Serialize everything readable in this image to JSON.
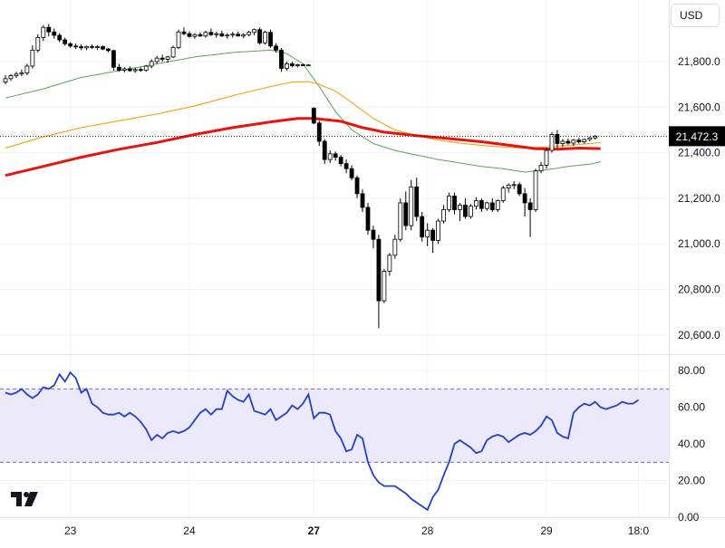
{
  "toolbar": {
    "currency_label": "USD"
  },
  "chart_data": [
    {
      "type": "candlestick",
      "yticks": [
        "21,800.0",
        "21,600.0",
        "21,400.0",
        "21,200.0",
        "21,000.0",
        "20,800.0",
        "20,600.0"
      ],
      "ytick_values": [
        21800,
        21600,
        21400,
        21200,
        21000,
        20800,
        20600
      ],
      "ylim": [
        20520,
        22070
      ],
      "xticks": [
        "23",
        "24",
        "27",
        "28",
        "29",
        "18:0"
      ],
      "xtick_bar_index": [
        12,
        34,
        57,
        78,
        100,
        117
      ],
      "bold_xticks": [
        "27"
      ],
      "last_price_label": "21,472.3",
      "last_price": 21472.3,
      "grid": true,
      "colors": {
        "up": "#ffffff",
        "down": "#000000",
        "outline": "#000000",
        "ma_short": "#5aa35a",
        "ma_mid": "#f5a623",
        "ma_long": "#e8130f",
        "last_price_bg": "#000000"
      },
      "candles": [
        {
          "o": 21710,
          "h": 21740,
          "l": 21700,
          "c": 21725
        },
        {
          "o": 21725,
          "h": 21745,
          "l": 21715,
          "c": 21738
        },
        {
          "o": 21738,
          "h": 21755,
          "l": 21728,
          "c": 21745
        },
        {
          "o": 21745,
          "h": 21765,
          "l": 21735,
          "c": 21750
        },
        {
          "o": 21750,
          "h": 21790,
          "l": 21740,
          "c": 21780
        },
        {
          "o": 21780,
          "h": 21870,
          "l": 21770,
          "c": 21850
        },
        {
          "o": 21850,
          "h": 21920,
          "l": 21840,
          "c": 21905
        },
        {
          "o": 21905,
          "h": 21960,
          "l": 21890,
          "c": 21950
        },
        {
          "o": 21950,
          "h": 21965,
          "l": 21910,
          "c": 21930
        },
        {
          "o": 21930,
          "h": 21945,
          "l": 21900,
          "c": 21915
        },
        {
          "o": 21915,
          "h": 21925,
          "l": 21885,
          "c": 21895
        },
        {
          "o": 21895,
          "h": 21905,
          "l": 21870,
          "c": 21878
        },
        {
          "o": 21878,
          "h": 21885,
          "l": 21860,
          "c": 21868
        },
        {
          "o": 21868,
          "h": 21880,
          "l": 21855,
          "c": 21865
        },
        {
          "o": 21865,
          "h": 21875,
          "l": 21850,
          "c": 21860
        },
        {
          "o": 21860,
          "h": 21870,
          "l": 21850,
          "c": 21866
        },
        {
          "o": 21866,
          "h": 21875,
          "l": 21855,
          "c": 21862
        },
        {
          "o": 21862,
          "h": 21872,
          "l": 21852,
          "c": 21865
        },
        {
          "o": 21865,
          "h": 21870,
          "l": 21850,
          "c": 21855
        },
        {
          "o": 21855,
          "h": 21860,
          "l": 21840,
          "c": 21848
        },
        {
          "o": 21848,
          "h": 21852,
          "l": 21760,
          "c": 21775
        },
        {
          "o": 21775,
          "h": 21790,
          "l": 21755,
          "c": 21762
        },
        {
          "o": 21762,
          "h": 21775,
          "l": 21752,
          "c": 21768
        },
        {
          "o": 21768,
          "h": 21778,
          "l": 21755,
          "c": 21760
        },
        {
          "o": 21760,
          "h": 21772,
          "l": 21750,
          "c": 21765
        },
        {
          "o": 21765,
          "h": 21775,
          "l": 21755,
          "c": 21762
        },
        {
          "o": 21762,
          "h": 21785,
          "l": 21755,
          "c": 21780
        },
        {
          "o": 21780,
          "h": 21810,
          "l": 21770,
          "c": 21800
        },
        {
          "o": 21800,
          "h": 21825,
          "l": 21790,
          "c": 21815
        },
        {
          "o": 21815,
          "h": 21830,
          "l": 21800,
          "c": 21810
        },
        {
          "o": 21810,
          "h": 21825,
          "l": 21795,
          "c": 21820
        },
        {
          "o": 21820,
          "h": 21870,
          "l": 21815,
          "c": 21862
        },
        {
          "o": 21862,
          "h": 21940,
          "l": 21855,
          "c": 21930
        },
        {
          "o": 21930,
          "h": 21950,
          "l": 21915,
          "c": 21922
        },
        {
          "o": 21922,
          "h": 21932,
          "l": 21905,
          "c": 21910
        },
        {
          "o": 21910,
          "h": 21925,
          "l": 21900,
          "c": 21918
        },
        {
          "o": 21918,
          "h": 21928,
          "l": 21908,
          "c": 21912
        },
        {
          "o": 21912,
          "h": 21935,
          "l": 21905,
          "c": 21928
        },
        {
          "o": 21928,
          "h": 21945,
          "l": 21912,
          "c": 21918
        },
        {
          "o": 21918,
          "h": 21930,
          "l": 21905,
          "c": 21922
        },
        {
          "o": 21922,
          "h": 21935,
          "l": 21908,
          "c": 21912
        },
        {
          "o": 21912,
          "h": 21924,
          "l": 21900,
          "c": 21916
        },
        {
          "o": 21916,
          "h": 21930,
          "l": 21905,
          "c": 21920
        },
        {
          "o": 21920,
          "h": 21932,
          "l": 21910,
          "c": 21912
        },
        {
          "o": 21912,
          "h": 21925,
          "l": 21902,
          "c": 21918
        },
        {
          "o": 21918,
          "h": 21935,
          "l": 21910,
          "c": 21928
        },
        {
          "o": 21928,
          "h": 21945,
          "l": 21915,
          "c": 21940
        },
        {
          "o": 21940,
          "h": 21950,
          "l": 21875,
          "c": 21882
        },
        {
          "o": 21882,
          "h": 21935,
          "l": 21875,
          "c": 21928
        },
        {
          "o": 21928,
          "h": 21940,
          "l": 21860,
          "c": 21868
        },
        {
          "o": 21868,
          "h": 21880,
          "l": 21840,
          "c": 21850
        },
        {
          "o": 21850,
          "h": 21860,
          "l": 21755,
          "c": 21770
        },
        {
          "o": 21770,
          "h": 21800,
          "l": 21760,
          "c": 21790
        },
        {
          "o": 21790,
          "h": 21800,
          "l": 21775,
          "c": 21782
        },
        {
          "o": 21782,
          "h": 21790,
          "l": 21775,
          "c": 21786
        },
        {
          "o": 21786,
          "h": 21790,
          "l": 21780,
          "c": 21784
        },
        {
          "o": 21784,
          "h": 21788,
          "l": 21780,
          "c": 21785
        },
        {
          "o": 21595,
          "h": 21600,
          "l": 21525,
          "c": 21530
        },
        {
          "o": 21530,
          "h": 21540,
          "l": 21430,
          "c": 21450
        },
        {
          "o": 21450,
          "h": 21460,
          "l": 21350,
          "c": 21370
        },
        {
          "o": 21370,
          "h": 21410,
          "l": 21355,
          "c": 21395
        },
        {
          "o": 21395,
          "h": 21405,
          "l": 21365,
          "c": 21380
        },
        {
          "o": 21380,
          "h": 21390,
          "l": 21340,
          "c": 21352
        },
        {
          "o": 21352,
          "h": 21370,
          "l": 21310,
          "c": 21330
        },
        {
          "o": 21330,
          "h": 21345,
          "l": 21280,
          "c": 21290
        },
        {
          "o": 21290,
          "h": 21300,
          "l": 21200,
          "c": 21220
        },
        {
          "o": 21220,
          "h": 21240,
          "l": 21140,
          "c": 21160
        },
        {
          "o": 21160,
          "h": 21180,
          "l": 21040,
          "c": 21060
        },
        {
          "o": 21060,
          "h": 21080,
          "l": 20980,
          "c": 21020
        },
        {
          "o": 21020,
          "h": 21040,
          "l": 20630,
          "c": 20750
        },
        {
          "o": 20750,
          "h": 20890,
          "l": 20740,
          "c": 20880
        },
        {
          "o": 20880,
          "h": 20960,
          "l": 20860,
          "c": 20950
        },
        {
          "o": 20950,
          "h": 21040,
          "l": 20935,
          "c": 21020
        },
        {
          "o": 21020,
          "h": 21200,
          "l": 21010,
          "c": 21180
        },
        {
          "o": 21180,
          "h": 21230,
          "l": 21060,
          "c": 21080
        },
        {
          "o": 21080,
          "h": 21280,
          "l": 21060,
          "c": 21250
        },
        {
          "o": 21250,
          "h": 21290,
          "l": 21100,
          "c": 21120
        },
        {
          "o": 21120,
          "h": 21140,
          "l": 21010,
          "c": 21030
        },
        {
          "o": 21030,
          "h": 21090,
          "l": 20990,
          "c": 21060
        },
        {
          "o": 21060,
          "h": 21070,
          "l": 20960,
          "c": 21015
        },
        {
          "o": 21015,
          "h": 21110,
          "l": 21000,
          "c": 21100
        },
        {
          "o": 21100,
          "h": 21170,
          "l": 21090,
          "c": 21150
        },
        {
          "o": 21150,
          "h": 21225,
          "l": 21140,
          "c": 21210
        },
        {
          "o": 21210,
          "h": 21225,
          "l": 21130,
          "c": 21150
        },
        {
          "o": 21150,
          "h": 21180,
          "l": 21100,
          "c": 21170
        },
        {
          "o": 21170,
          "h": 21200,
          "l": 21110,
          "c": 21120
        },
        {
          "o": 21120,
          "h": 21175,
          "l": 21110,
          "c": 21165
        },
        {
          "o": 21165,
          "h": 21205,
          "l": 21150,
          "c": 21190
        },
        {
          "o": 21190,
          "h": 21200,
          "l": 21140,
          "c": 21155
        },
        {
          "o": 21155,
          "h": 21185,
          "l": 21145,
          "c": 21180
        },
        {
          "o": 21180,
          "h": 21200,
          "l": 21140,
          "c": 21150
        },
        {
          "o": 21150,
          "h": 21195,
          "l": 21140,
          "c": 21190
        },
        {
          "o": 21190,
          "h": 21255,
          "l": 21180,
          "c": 21245
        },
        {
          "o": 21245,
          "h": 21265,
          "l": 21225,
          "c": 21258
        },
        {
          "o": 21258,
          "h": 21275,
          "l": 21240,
          "c": 21260
        },
        {
          "o": 21260,
          "h": 21270,
          "l": 21210,
          "c": 21220
        },
        {
          "o": 21220,
          "h": 21245,
          "l": 21120,
          "c": 21180
        },
        {
          "o": 21180,
          "h": 21200,
          "l": 21030,
          "c": 21150
        },
        {
          "o": 21150,
          "h": 21330,
          "l": 21140,
          "c": 21320
        },
        {
          "o": 21320,
          "h": 21360,
          "l": 21310,
          "c": 21345
        },
        {
          "o": 21345,
          "h": 21420,
          "l": 21330,
          "c": 21410
        },
        {
          "o": 21410,
          "h": 21490,
          "l": 21400,
          "c": 21480
        },
        {
          "o": 21480,
          "h": 21500,
          "l": 21420,
          "c": 21440
        },
        {
          "o": 21440,
          "h": 21460,
          "l": 21425,
          "c": 21450
        },
        {
          "o": 21450,
          "h": 21462,
          "l": 21435,
          "c": 21442
        },
        {
          "o": 21442,
          "h": 21460,
          "l": 21430,
          "c": 21455
        },
        {
          "o": 21455,
          "h": 21465,
          "l": 21440,
          "c": 21448
        },
        {
          "o": 21448,
          "h": 21462,
          "l": 21440,
          "c": 21458
        },
        {
          "o": 21458,
          "h": 21470,
          "l": 21450,
          "c": 21465
        },
        {
          "o": 21465,
          "h": 21478,
          "l": 21458,
          "c": 21472
        }
      ],
      "ma_short": [
        [
          0,
          21640
        ],
        [
          7,
          21680
        ],
        [
          14,
          21730
        ],
        [
          21,
          21760
        ],
        [
          28,
          21790
        ],
        [
          35,
          21820
        ],
        [
          42,
          21840
        ],
        [
          49,
          21850
        ],
        [
          52,
          21835
        ],
        [
          55,
          21790
        ],
        [
          58,
          21690
        ],
        [
          61,
          21580
        ],
        [
          64,
          21500
        ],
        [
          68,
          21440
        ],
        [
          72,
          21410
        ],
        [
          76,
          21390
        ],
        [
          80,
          21370
        ],
        [
          84,
          21355
        ],
        [
          88,
          21340
        ],
        [
          92,
          21330
        ],
        [
          96,
          21315
        ],
        [
          100,
          21325
        ],
        [
          104,
          21340
        ],
        [
          108,
          21350
        ],
        [
          110,
          21360
        ]
      ],
      "ma_mid": [
        [
          0,
          21420
        ],
        [
          7,
          21470
        ],
        [
          14,
          21510
        ],
        [
          21,
          21540
        ],
        [
          28,
          21570
        ],
        [
          35,
          21605
        ],
        [
          42,
          21650
        ],
        [
          49,
          21690
        ],
        [
          53,
          21710
        ],
        [
          56,
          21712
        ],
        [
          58,
          21700
        ],
        [
          61,
          21670
        ],
        [
          64,
          21620
        ],
        [
          68,
          21550
        ],
        [
          72,
          21500
        ],
        [
          76,
          21475
        ],
        [
          80,
          21455
        ],
        [
          84,
          21442
        ],
        [
          88,
          21432
        ],
        [
          92,
          21425
        ],
        [
          96,
          21420
        ],
        [
          100,
          21425
        ],
        [
          104,
          21432
        ],
        [
          108,
          21440
        ],
        [
          110,
          21445
        ]
      ],
      "ma_long": [
        [
          0,
          21300
        ],
        [
          7,
          21340
        ],
        [
          14,
          21380
        ],
        [
          21,
          21415
        ],
        [
          28,
          21445
        ],
        [
          35,
          21480
        ],
        [
          42,
          21510
        ],
        [
          49,
          21535
        ],
        [
          54,
          21550
        ],
        [
          57,
          21550
        ],
        [
          62,
          21538
        ],
        [
          66,
          21510
        ],
        [
          70,
          21490
        ],
        [
          76,
          21475
        ],
        [
          82,
          21462
        ],
        [
          88,
          21448
        ],
        [
          94,
          21430
        ],
        [
          98,
          21418
        ],
        [
          102,
          21415
        ],
        [
          106,
          21420
        ],
        [
          110,
          21418
        ]
      ]
    },
    {
      "type": "line",
      "indicator": "rsi",
      "yticks": [
        "80.00",
        "60.00",
        "40.00",
        "20.00",
        "0.00"
      ],
      "ytick_values": [
        80,
        60,
        40,
        20,
        0
      ],
      "ylim": [
        0,
        88
      ],
      "band": [
        30,
        70
      ],
      "colors": {
        "line": "#2141c6",
        "band_fill": "#ece9fb",
        "band_edge": "#6e6ed8"
      },
      "values": [
        68,
        67,
        68,
        70,
        67,
        65,
        67,
        71,
        70,
        72,
        78,
        74,
        79,
        76,
        68,
        70,
        62,
        60,
        57,
        56,
        56,
        57,
        55,
        57,
        55,
        52,
        48,
        42,
        45,
        43,
        46,
        47,
        46,
        47,
        49,
        53,
        57,
        59,
        56,
        59,
        59,
        69,
        66,
        64,
        63,
        67,
        58,
        57,
        56,
        59,
        53,
        55,
        57,
        61,
        59,
        62,
        67,
        54,
        57,
        57,
        56,
        47,
        43,
        36,
        37,
        45,
        43,
        30,
        23,
        19,
        17,
        17,
        17,
        15,
        13,
        10,
        8,
        6,
        4,
        11,
        15,
        23,
        30,
        40,
        42,
        40,
        38,
        35,
        36,
        42,
        44,
        45,
        44,
        41,
        43,
        45,
        46,
        45,
        47,
        50,
        55,
        53,
        46,
        44,
        43,
        57,
        60,
        62,
        61,
        63,
        60,
        59,
        60,
        61,
        63,
        62,
        62,
        64
      ]
    }
  ]
}
